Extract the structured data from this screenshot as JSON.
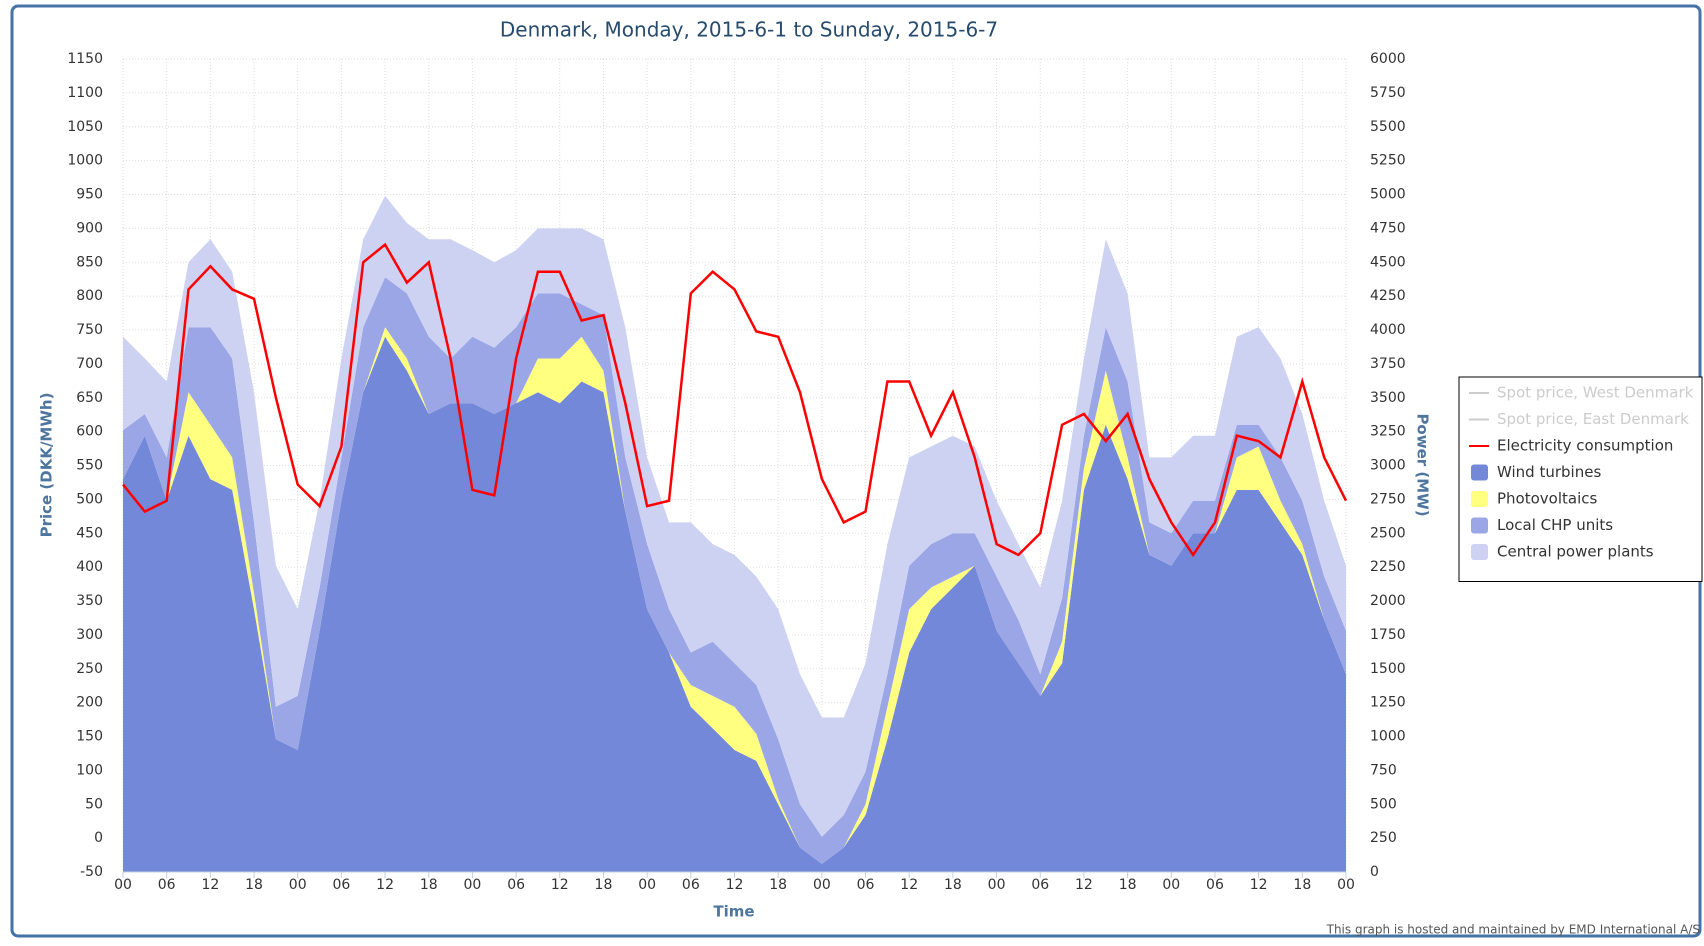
{
  "chart_data": {
    "type": "area",
    "title": "Denmark, Monday, 2015-6-1 to Sunday, 2015-6-7",
    "x_label": "Time",
    "y_label": "Price (DKK/MWh)",
    "y2_label": "Power (MW)",
    "credit": "This graph is hosted and maintained by EMD International A/S",
    "x": [
      0,
      3,
      6,
      9,
      12,
      15,
      18,
      21,
      24,
      27,
      30,
      33,
      36,
      39,
      42,
      45,
      48,
      51,
      54,
      57,
      60,
      63,
      66,
      69,
      72,
      75,
      78,
      81,
      84,
      87,
      90,
      93,
      96,
      99,
      102,
      105,
      108,
      111,
      114,
      117,
      120,
      123,
      126,
      129,
      132,
      135,
      138,
      141,
      144,
      147,
      150,
      153,
      156,
      159,
      162,
      165,
      168
    ],
    "xlim": [
      0,
      168
    ],
    "xticks": [
      {
        "value": 0,
        "label": "00"
      },
      {
        "value": 6,
        "label": "06"
      },
      {
        "value": 12,
        "label": "12"
      },
      {
        "value": 18,
        "label": "18"
      },
      {
        "value": 24,
        "label": "00"
      },
      {
        "value": 30,
        "label": "06"
      },
      {
        "value": 36,
        "label": "12"
      },
      {
        "value": 42,
        "label": "18"
      },
      {
        "value": 48,
        "label": "00"
      },
      {
        "value": 54,
        "label": "06"
      },
      {
        "value": 60,
        "label": "12"
      },
      {
        "value": 66,
        "label": "18"
      },
      {
        "value": 72,
        "label": "00"
      },
      {
        "value": 78,
        "label": "06"
      },
      {
        "value": 84,
        "label": "12"
      },
      {
        "value": 90,
        "label": "18"
      },
      {
        "value": 96,
        "label": "00"
      },
      {
        "value": 102,
        "label": "06"
      },
      {
        "value": 108,
        "label": "12"
      },
      {
        "value": 114,
        "label": "18"
      },
      {
        "value": 120,
        "label": "00"
      },
      {
        "value": 126,
        "label": "06"
      },
      {
        "value": 132,
        "label": "12"
      },
      {
        "value": 138,
        "label": "18"
      },
      {
        "value": 144,
        "label": "00"
      },
      {
        "value": 150,
        "label": "06"
      },
      {
        "value": 156,
        "label": "12"
      },
      {
        "value": 162,
        "label": "18"
      },
      {
        "value": 168,
        "label": "00"
      }
    ],
    "ylim": [
      -50,
      1150
    ],
    "yticks": [
      -50,
      0,
      50,
      100,
      150,
      200,
      250,
      300,
      350,
      400,
      450,
      500,
      550,
      600,
      650,
      700,
      750,
      800,
      850,
      900,
      950,
      1000,
      1050,
      1100,
      1150
    ],
    "y2lim": [
      0,
      6000
    ],
    "y2ticks": [
      0,
      250,
      500,
      750,
      1000,
      1250,
      1500,
      1750,
      2000,
      2250,
      2500,
      2750,
      3000,
      3250,
      3500,
      3750,
      4000,
      4250,
      4500,
      4750,
      5000,
      5250,
      5500,
      5750,
      6000
    ],
    "grid": true,
    "stacked": true,
    "legend": "right",
    "series": [
      {
        "name": "Spot price, West Denmark",
        "type": "line",
        "color": "#cccccc",
        "visible": false
      },
      {
        "name": "Spot price, East Denmark",
        "type": "line",
        "color": "#cccccc",
        "visible": false
      },
      {
        "name": "Electricity consumption",
        "type": "line",
        "color": "#ff0000",
        "axis": "y2",
        "visible": true,
        "values": [
          2860,
          2660,
          2740,
          4300,
          4470,
          4300,
          4230,
          3500,
          2860,
          2700,
          3140,
          4500,
          4630,
          4350,
          4500,
          3790,
          2820,
          2780,
          3790,
          4430,
          4430,
          4070,
          4110,
          3460,
          2700,
          2740,
          4270,
          4430,
          4300,
          3990,
          3950,
          3540,
          2900,
          2580,
          2660,
          3620,
          3620,
          3220,
          3540,
          3060,
          2420,
          2340,
          2500,
          3300,
          3380,
          3180,
          3380,
          2900,
          2580,
          2340,
          2580,
          3220,
          3180,
          3060,
          3620,
          3060,
          2740
        ]
      },
      {
        "name": "Wind turbines",
        "type": "area",
        "color": "#7388d9",
        "axis": "y2",
        "visible": true,
        "values": [
          2900,
          3220,
          2740,
          3220,
          2900,
          2820,
          1940,
          980,
          900,
          1780,
          2740,
          3540,
          3950,
          3700,
          3380,
          3460,
          3460,
          3380,
          3460,
          3540,
          3460,
          3620,
          3540,
          2660,
          1940,
          1620,
          1220,
          1060,
          900,
          820,
          500,
          180,
          60,
          180,
          420,
          980,
          1620,
          1940,
          2100,
          2260,
          1780,
          1540,
          1300,
          1540,
          2820,
          3300,
          2900,
          2340,
          2260,
          2500,
          2500,
          2820,
          2820,
          2580,
          2340,
          1860,
          1460
        ]
      },
      {
        "name": "Photovoltaics",
        "type": "area",
        "color": "#ffff80",
        "axis": "y2",
        "visible": true,
        "values": [
          0,
          0,
          0,
          320,
          400,
          240,
          120,
          0,
          0,
          0,
          0,
          0,
          70,
          90,
          0,
          0,
          0,
          0,
          0,
          250,
          330,
          330,
          160,
          0,
          0,
          0,
          160,
          240,
          320,
          200,
          40,
          0,
          0,
          0,
          80,
          240,
          320,
          160,
          80,
          0,
          0,
          0,
          0,
          160,
          160,
          400,
          160,
          0,
          0,
          0,
          0,
          240,
          320,
          160,
          80,
          0,
          0
        ]
      },
      {
        "name": "Local CHP units",
        "type": "area",
        "color": "#9ba6e6",
        "axis": "y2",
        "visible": true,
        "values": [
          360,
          160,
          320,
          480,
          720,
          730,
          520,
          240,
          400,
          320,
          320,
          480,
          370,
          480,
          570,
          330,
          490,
          490,
          560,
          480,
          480,
          240,
          410,
          400,
          480,
          320,
          240,
          400,
          320,
          360,
          440,
          320,
          200,
          240,
          240,
          240,
          320,
          320,
          320,
          240,
          400,
          320,
          160,
          320,
          240,
          320,
          560,
          240,
          240,
          240,
          240,
          240,
          160,
          320,
          320,
          320,
          320
        ]
      },
      {
        "name": "Central power plants",
        "type": "area",
        "color": "#cdd2f2",
        "axis": "y2",
        "visible": true,
        "values": [
          690,
          410,
          560,
          480,
          650,
          640,
          960,
          1040,
          640,
          640,
          730,
          650,
          600,
          520,
          720,
          880,
          640,
          630,
          570,
          480,
          480,
          560,
          560,
          960,
          640,
          640,
          960,
          720,
          800,
          800,
          960,
          960,
          880,
          720,
          800,
          960,
          800,
          720,
          720,
          640,
          560,
          560,
          640,
          720,
          570,
          650,
          650,
          480,
          560,
          480,
          480,
          650,
          720,
          730,
          640,
          560,
          480
        ]
      }
    ]
  }
}
